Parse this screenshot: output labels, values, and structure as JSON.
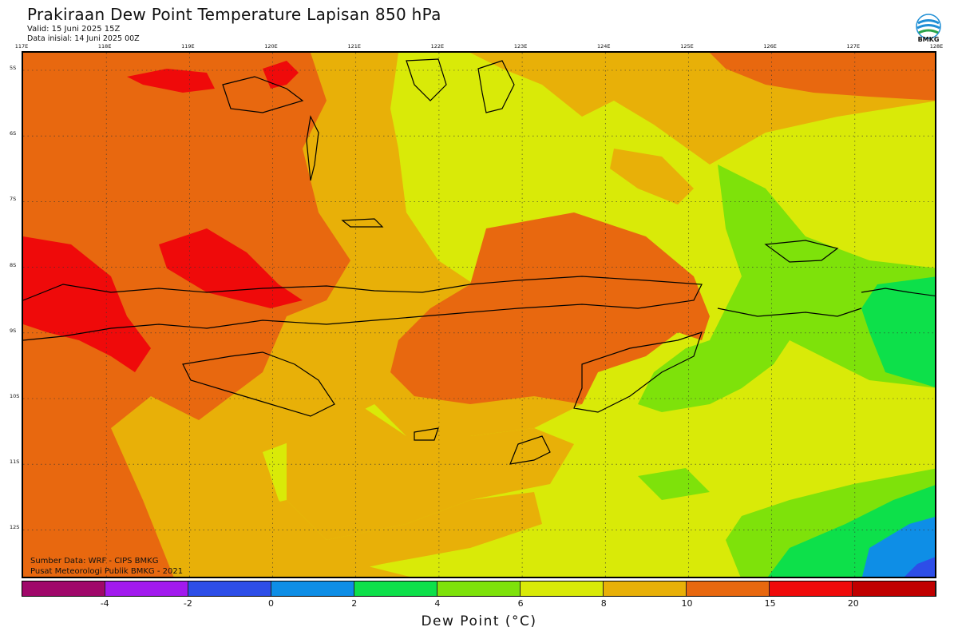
{
  "header": {
    "title": "Prakiraan Dew Point Temperature Lapisan 850 hPa",
    "valid": "Valid: 15 Juni 2025 15Z",
    "init": "Data inisial: 14 Juni 2025 00Z"
  },
  "logo": {
    "text": "BMKG",
    "colors": [
      "#1f8fd6",
      "#2aa44a"
    ]
  },
  "axes": {
    "lon_labels": [
      "117E",
      "118E",
      "119E",
      "120E",
      "121E",
      "122E",
      "123E",
      "124E",
      "125E",
      "126E",
      "127E",
      "128E"
    ],
    "lat_labels": [
      "5S",
      "6S",
      "7S",
      "8S",
      "9S",
      "10S",
      "11S",
      "12S"
    ]
  },
  "credits": {
    "source": "Sumber Data: WRF - CIPS BMKG",
    "publisher": "Pusat Meteorologi Publik BMKG - 2021"
  },
  "colorbar": {
    "title": "Dew Point (°C)",
    "colors": [
      "#a0086a",
      "#a21aee",
      "#2d4ee8",
      "#0e8ee6",
      "#0de04a",
      "#7ee20a",
      "#d9ea08",
      "#e8b008",
      "#e8680f",
      "#ef0a0a",
      "#c00000"
    ],
    "tick_labels": [
      "-4",
      "-2",
      "0",
      "2",
      "4",
      "6",
      "8",
      "10",
      "15",
      "20"
    ]
  },
  "chart_data": {
    "type": "heatmap",
    "title": "Prakiraan Dew Point Temperature Lapisan 850 hPa",
    "variable": "Dew Point (°C)",
    "levels": [
      -4,
      -2,
      0,
      2,
      4,
      6,
      8,
      10,
      15,
      20
    ],
    "lon_range": [
      117,
      128
    ],
    "lat_range": [
      -4.8,
      -12.8
    ]
  }
}
